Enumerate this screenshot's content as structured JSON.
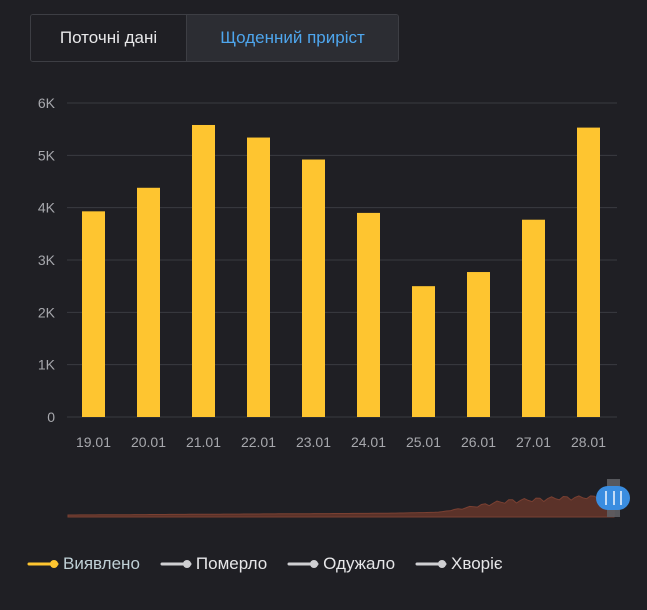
{
  "tabs": [
    {
      "label": "Поточні дані",
      "active": false
    },
    {
      "label": "Щоденний приріст",
      "active": true
    }
  ],
  "colors": {
    "background": "#1f1f24",
    "bar": "#fec530",
    "grid": "#3a3b41",
    "axis_text": "#a7a8ad",
    "active_tab": "#4ea6ee",
    "navigator_area": "#5b3229",
    "navigator_line": "#7a4032",
    "navigator_handle": "#3a8de0"
  },
  "chart_data": {
    "type": "bar",
    "title": "",
    "xlabel": "",
    "ylabel": "",
    "categories": [
      "19.01",
      "20.01",
      "21.01",
      "22.01",
      "23.01",
      "24.01",
      "25.01",
      "26.01",
      "27.01",
      "28.01"
    ],
    "series": [
      {
        "name": "Виявлено",
        "values": [
          3930,
          4380,
          5580,
          5340,
          4920,
          3900,
          2500,
          2770,
          3770,
          5530
        ]
      }
    ],
    "ylim": [
      0,
      6000
    ],
    "yticks": [
      0,
      1000,
      2000,
      3000,
      4000,
      5000,
      6000
    ],
    "ytick_labels": [
      "0",
      "1K",
      "2K",
      "3K",
      "4K",
      "5K",
      "6K"
    ],
    "grid": true,
    "legend_position": "bottom-left"
  },
  "legend": [
    {
      "label": "Виявлено",
      "color": "#fec530",
      "text_color": "#bfd0d6",
      "active": true
    },
    {
      "label": "Померло",
      "color": "#cfcfd2",
      "text_color": "#e6e6e8",
      "active": false
    },
    {
      "label": "Одужало",
      "color": "#cfcfd2",
      "text_color": "#e6e6e8",
      "active": false
    },
    {
      "label": "Хворіє",
      "color": "#cfcfd2",
      "text_color": "#e6e6e8",
      "active": false
    }
  ]
}
